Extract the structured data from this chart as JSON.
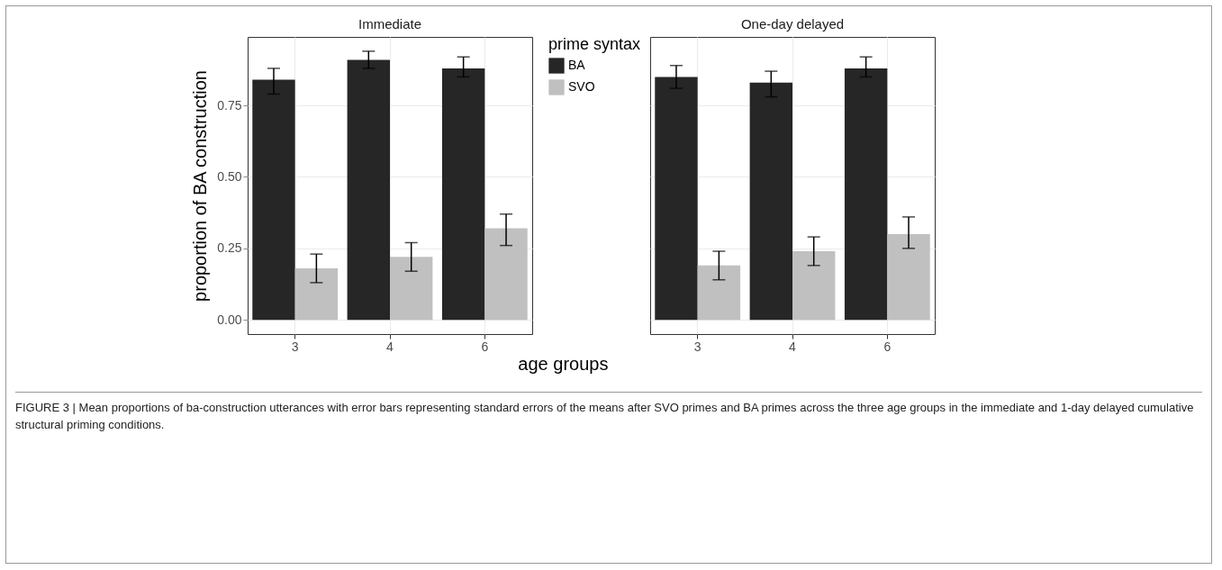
{
  "chart_data": [
    {
      "type": "bar",
      "title": "Immediate",
      "xlabel": "age groups",
      "ylabel": "proportion of BA construction",
      "legend_title": "prime syntax",
      "legend": "right",
      "grid": true,
      "annotations": [
        "FIGURE 3 | Mean proportions of ba-construction utterances with error bars representing standard errors of the means after SVO primes and BA primes across the three age groups in the immediate and 1-day delayed cumulative structural priming conditions."
      ],
      "categories": [
        "3",
        "4",
        "6"
      ],
      "ylim": [
        -0.05,
        0.99
      ],
      "yticks": [
        {
          "value": 0,
          "label": "0.00"
        },
        0.25,
        {
          "value": 0.5,
          "label": "0.50"
        },
        0.75
      ],
      "series": [
        {
          "name": "BA",
          "color": "#262626",
          "values": [
            0.84,
            0.91,
            0.88
          ],
          "errors": [
            [
              0.79,
              0.88
            ],
            [
              0.88,
              0.94
            ],
            [
              0.85,
              0.92
            ]
          ]
        },
        {
          "name": "SVO",
          "color": "#c0c0c0",
          "values": [
            0.18,
            0.22,
            0.32
          ],
          "errors": [
            [
              0.13,
              0.23
            ],
            [
              0.17,
              0.27
            ],
            [
              0.26,
              0.37
            ]
          ]
        }
      ]
    },
    {
      "type": "bar",
      "title": "One-day delayed",
      "grid": true,
      "tick_labels": "x",
      "categories": [
        "3",
        "4",
        "6"
      ],
      "ylim": [
        -0.05,
        0.99
      ],
      "yticks": [
        0,
        0.25,
        0.5,
        0.75
      ],
      "series": [
        {
          "name": "BA",
          "color": "#262626",
          "values": [
            0.85,
            0.83,
            0.88
          ],
          "errors": [
            [
              0.81,
              0.89
            ],
            [
              0.78,
              0.87
            ],
            [
              0.85,
              0.92
            ]
          ]
        },
        {
          "name": "SVO",
          "color": "#c0c0c0",
          "values": [
            0.19,
            0.24,
            0.3
          ],
          "errors": [
            [
              0.14,
              0.24
            ],
            [
              0.19,
              0.29
            ],
            [
              0.25,
              0.36
            ]
          ]
        }
      ]
    }
  ]
}
